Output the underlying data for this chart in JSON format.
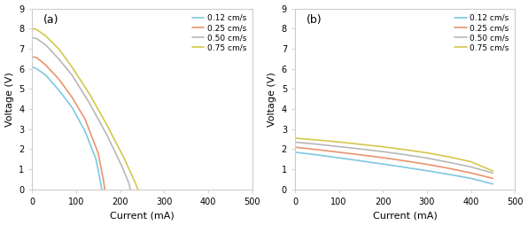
{
  "panel_a": {
    "label": "(a)",
    "xlabel": "Current (mA)",
    "ylabel": "Voltage (V)",
    "xlim": [
      0,
      500
    ],
    "ylim": [
      0,
      9
    ],
    "yticks": [
      0,
      1,
      2,
      3,
      4,
      5,
      6,
      7,
      8,
      9
    ],
    "xticks": [
      0,
      100,
      200,
      300,
      400,
      500
    ],
    "series": [
      {
        "label": "0.12 cm/s",
        "color": "#7ec8e3",
        "x": [
          0,
          10,
          30,
          60,
          90,
          120,
          145,
          155,
          158
        ],
        "y": [
          6.1,
          6.0,
          5.7,
          4.95,
          4.1,
          2.9,
          1.5,
          0.4,
          0.0
        ]
      },
      {
        "label": "0.25 cm/s",
        "color": "#e8956d",
        "x": [
          0,
          10,
          30,
          60,
          90,
          120,
          150,
          162,
          165
        ],
        "y": [
          6.6,
          6.55,
          6.2,
          5.5,
          4.6,
          3.5,
          1.8,
          0.45,
          0.0
        ]
      },
      {
        "label": "0.50 cm/s",
        "color": "#b8b8b8",
        "x": [
          0,
          10,
          30,
          60,
          90,
          130,
          170,
          205,
          220,
          223
        ],
        "y": [
          7.55,
          7.5,
          7.2,
          6.5,
          5.7,
          4.3,
          2.7,
          1.1,
          0.3,
          0.0
        ]
      },
      {
        "label": "0.75 cm/s",
        "color": "#d4c84a",
        "x": [
          0,
          10,
          30,
          60,
          90,
          130,
          170,
          210,
          235,
          240
        ],
        "y": [
          8.0,
          7.95,
          7.65,
          7.0,
          6.1,
          4.75,
          3.2,
          1.5,
          0.3,
          0.0
        ]
      }
    ]
  },
  "panel_b": {
    "label": "(b)",
    "xlabel": "Current (mA)",
    "ylabel": "Voltage (V)",
    "xlim": [
      0,
      500
    ],
    "ylim": [
      0,
      9
    ],
    "yticks": [
      0,
      1,
      2,
      3,
      4,
      5,
      6,
      7,
      8,
      9
    ],
    "xticks": [
      0,
      100,
      200,
      300,
      400,
      500
    ],
    "series": [
      {
        "label": "0.12 cm/s",
        "color": "#7ec8e3",
        "x": [
          0,
          50,
          100,
          150,
          200,
          250,
          300,
          350,
          400,
          450
        ],
        "y": [
          1.85,
          1.72,
          1.57,
          1.42,
          1.26,
          1.1,
          0.93,
          0.75,
          0.55,
          0.27
        ]
      },
      {
        "label": "0.25 cm/s",
        "color": "#e8956d",
        "x": [
          0,
          50,
          100,
          150,
          200,
          250,
          300,
          350,
          400,
          450
        ],
        "y": [
          2.1,
          1.98,
          1.85,
          1.72,
          1.58,
          1.42,
          1.25,
          1.05,
          0.82,
          0.55
        ]
      },
      {
        "label": "0.50 cm/s",
        "color": "#b8b8b8",
        "x": [
          0,
          50,
          100,
          150,
          200,
          250,
          300,
          350,
          400,
          450
        ],
        "y": [
          2.35,
          2.25,
          2.13,
          2.01,
          1.88,
          1.73,
          1.56,
          1.35,
          1.12,
          0.82
        ]
      },
      {
        "label": "0.75 cm/s",
        "color": "#d4c84a",
        "x": [
          0,
          50,
          100,
          150,
          200,
          250,
          300,
          350,
          400,
          450
        ],
        "y": [
          2.55,
          2.46,
          2.36,
          2.24,
          2.12,
          1.98,
          1.82,
          1.62,
          1.38,
          0.92
        ]
      }
    ]
  },
  "legend_fontsize": 6.5,
  "axis_fontsize": 8,
  "tick_fontsize": 7,
  "linewidth": 1.2,
  "background_color": "#ffffff"
}
